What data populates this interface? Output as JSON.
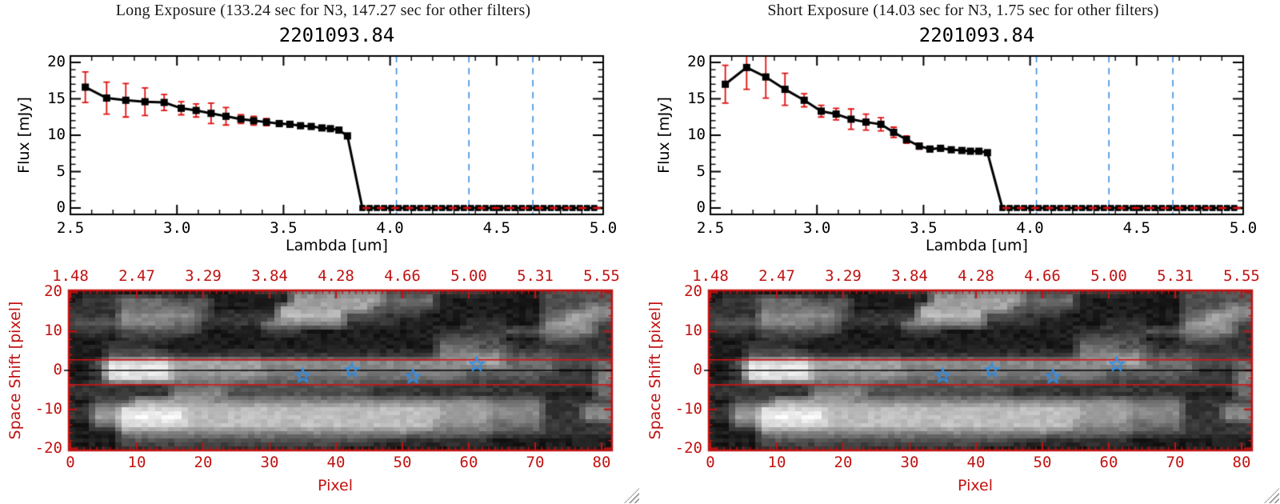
{
  "app": {
    "background": "#ffffff"
  },
  "colors": {
    "plot_axis": "#000000",
    "red_axis": "#c11212",
    "error_bar": "#e01010",
    "zero_dash_red": "#e01010",
    "blue_dashed_line": "#3d8ee0",
    "star_blue": "#2e8ee8",
    "marker_black": "#000000",
    "grip_gray": "#9a9a9a"
  },
  "icons": {
    "resize_grip": "diagonal-lines-resize-handle",
    "star_marker": "open-five-point-star"
  },
  "windows": [
    {
      "title": "Long Exposure (133.24 sec for N3, 147.27 sec for other filters)",
      "spectrum_title": "2201093.84"
    },
    {
      "title": "Short Exposure (14.03 sec for N3, 1.75 sec for other filters)",
      "spectrum_title": "2201093.84"
    }
  ],
  "shared": {
    "flux": {
      "xlabel": "Lambda [um]",
      "ylabel": "Flux [mJy]"
    },
    "image": {
      "xlabel": "Pixel",
      "ylabel": "Space Shift [pixel]"
    }
  },
  "chart_data": [
    {
      "type": "line",
      "panel": "long-exposure",
      "title": "2201093.84",
      "window_title": "Long Exposure (133.24 sec for N3, 147.27 sec for other filters)",
      "xlabel": "Lambda [um]",
      "ylabel": "Flux [mJy]",
      "xlim": [
        2.5,
        5.0
      ],
      "ylim": [
        0,
        20
      ],
      "xticks": [
        2.5,
        3.0,
        3.5,
        4.0,
        4.5,
        5.0
      ],
      "xtick_labels": [
        "2.5",
        "3.0",
        "3.5",
        "4.0",
        "4.5",
        "5.0"
      ],
      "yticks": [
        0,
        5,
        10,
        15,
        20
      ],
      "ytick_labels": [
        "0",
        "5",
        "10",
        "15",
        "20"
      ],
      "minor_x_step": 0.1,
      "minor_y_step": 1,
      "marker": "filled-square",
      "x": [
        2.57,
        2.67,
        2.76,
        2.85,
        2.94,
        3.02,
        3.09,
        3.16,
        3.23,
        3.3,
        3.36,
        3.42,
        3.48,
        3.53,
        3.58,
        3.63,
        3.68,
        3.72,
        3.76,
        3.8
      ],
      "y": [
        16.6,
        15.1,
        14.8,
        14.6,
        14.5,
        13.7,
        13.4,
        13.0,
        12.6,
        12.2,
        12.0,
        11.8,
        11.6,
        11.5,
        11.3,
        11.2,
        11.0,
        10.9,
        10.7,
        9.9
      ],
      "yerr": [
        2.1,
        2.2,
        2.3,
        1.9,
        1.1,
        0.9,
        0.9,
        1.4,
        1.2,
        0.6,
        0.6,
        0.5,
        0.4,
        0.35,
        0.3,
        0.3,
        0.3,
        0.25,
        0.2,
        0.35
      ],
      "drop_to_zero_at": 3.87,
      "zero_tail": {
        "start": 3.87,
        "end": 4.99,
        "step": 0.034,
        "flux": 0
      },
      "dashed_vlines_um": [
        4.03,
        4.37,
        4.67
      ],
      "zero_dashed_hline_flux": 0
    },
    {
      "type": "line",
      "panel": "short-exposure",
      "title": "2201093.84",
      "window_title": "Short Exposure (14.03 sec for N3, 1.75 sec for other filters)",
      "xlabel": "Lambda [um]",
      "ylabel": "Flux [mJy]",
      "xlim": [
        2.5,
        5.0
      ],
      "ylim": [
        0,
        20
      ],
      "xticks": [
        2.5,
        3.0,
        3.5,
        4.0,
        4.5,
        5.0
      ],
      "xtick_labels": [
        "2.5",
        "3.0",
        "3.5",
        "4.0",
        "4.5",
        "5.0"
      ],
      "yticks": [
        0,
        5,
        10,
        15,
        20
      ],
      "ytick_labels": [
        "0",
        "5",
        "10",
        "15",
        "20"
      ],
      "minor_x_step": 0.1,
      "minor_y_step": 1,
      "marker": "filled-square",
      "x": [
        2.57,
        2.67,
        2.76,
        2.85,
        2.94,
        3.02,
        3.09,
        3.16,
        3.23,
        3.3,
        3.36,
        3.42,
        3.48,
        3.53,
        3.58,
        3.63,
        3.68,
        3.72,
        3.76,
        3.8
      ],
      "y": [
        17.0,
        19.3,
        18.0,
        16.3,
        14.8,
        13.3,
        12.9,
        12.2,
        11.8,
        11.5,
        10.4,
        9.4,
        8.5,
        8.1,
        8.2,
        8.0,
        7.9,
        7.8,
        7.8,
        7.6
      ],
      "yerr": [
        2.6,
        3.0,
        2.9,
        2.2,
        0.9,
        0.8,
        0.8,
        1.4,
        1.1,
        0.9,
        0.7,
        0.5,
        0.4,
        0.35,
        0.3,
        0.3,
        0.3,
        0.25,
        0.2,
        0.3
      ],
      "drop_to_zero_at": 3.87,
      "zero_tail": {
        "start": 3.87,
        "end": 4.99,
        "step": 0.034,
        "flux": 0
      },
      "dashed_vlines_um": [
        4.03,
        4.37,
        4.67
      ],
      "zero_dashed_hline_flux": 0
    },
    {
      "type": "heatmap",
      "panel": "2d-spectral-image",
      "xlabel": "Pixel",
      "ylabel": "Space Shift [pixel]",
      "xlim": [
        -0.5,
        81.5
      ],
      "ylim": [
        -20.5,
        20.5
      ],
      "xticks": [
        0,
        10,
        20,
        30,
        40,
        50,
        60,
        70,
        80
      ],
      "xtick_labels": [
        "0",
        "10",
        "20",
        "30",
        "40",
        "50",
        "60",
        "70",
        "80"
      ],
      "top_axis_labels": [
        "1.48",
        "2.47",
        "3.29",
        "3.84",
        "4.28",
        "4.66",
        "5.00",
        "5.31",
        "5.55"
      ],
      "yticks": [
        20,
        10,
        0,
        -10,
        -20
      ],
      "ytick_labels": [
        "20",
        "10",
        "0",
        "-10",
        "-20"
      ],
      "minor_x_step": 1,
      "minor_y_step": 2,
      "aperture_lines_y": [
        2.7,
        -3.7
      ],
      "center_line_y": 0,
      "stars_xy": [
        [
          35,
          -1.4
        ],
        [
          42.4,
          0
        ],
        [
          51.6,
          -1.6
        ],
        [
          61.2,
          1.5
        ]
      ],
      "raster": {
        "note": "brightness grid 0-9, 41 cols (Pixel 0..80 step 2), 21 rows top(+20) to bottom(-20)",
        "cols": 41,
        "rows": 21,
        "rows_top_to_bottom": [
          "11111111111111222555555533332222111133333",
          "12224444333111111666666644441111111133333",
          "22224444443111116666666333331111111133355",
          "22225555553222227777733322211111111144665",
          "33335555442222255555522221111122211156653",
          "22223333331111122211111111112222233355552",
          "11112222111111111111111111113333311133322",
          "11122221111111111111111111114443331222222",
          "11133333222222222222222222225555533332222",
          "11388888666666655555555555555566644443334",
          "11399999666666655555555555555544444442224",
          "11288888555555544444444444444433333322225",
          "22222222444433333333333222222222222222224",
          "22222222555533333333333222222222222211114",
          "11333666666555555555555555555555444422223",
          "22558888877777777777777777776666555522255",
          "22669999977777777777777777776666555522255",
          "11448888877777777777777777775555444422222",
          "11115555555555555555555555444444333322222",
          "11113333333333333333333222222222111111111",
          "11112222222222222222211111111111111111111"
        ]
      }
    }
  ]
}
